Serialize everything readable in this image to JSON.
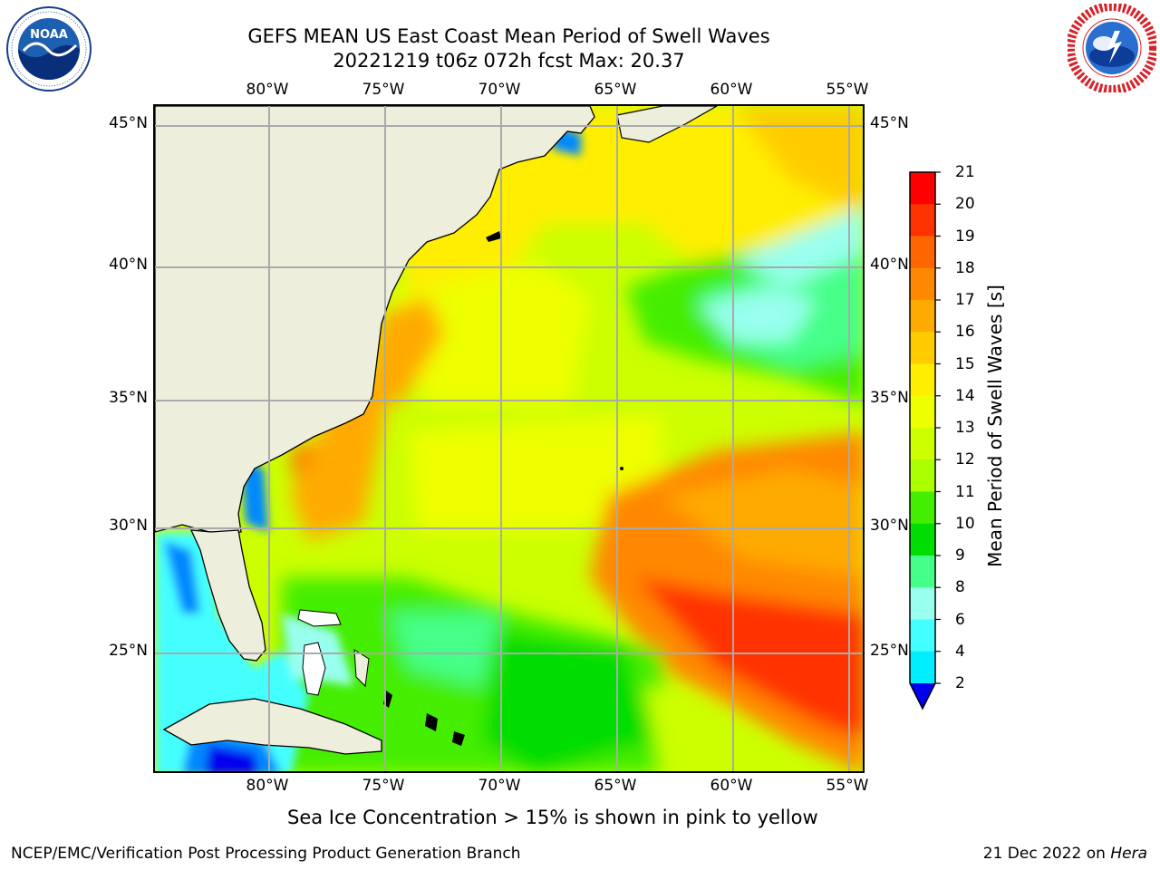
{
  "header": {
    "title_line1": "GEFS MEAN US East Coast Mean Period of Swell Waves",
    "title_line2": "20221219 t06z 072h fcst   Max: 20.37"
  },
  "logos": {
    "noaa_text": "NOAA",
    "noaa_ring_text": "NATIONAL OCEANIC AND ATMOSPHERIC ADMINISTRATION · U.S. DEPARTMENT OF COMMERCE",
    "nws_ring_text": "NATIONAL WEATHER SERVICE"
  },
  "map": {
    "lon_labels": [
      "80°W",
      "75°W",
      "70°W",
      "65°W",
      "60°W",
      "55°W"
    ],
    "lat_labels": [
      "45°N",
      "40°N",
      "35°N",
      "30°N",
      "25°N"
    ],
    "colors": {
      "land": "#eeeedd",
      "grid": "#aaaaaa",
      "coast": "#000000"
    }
  },
  "colorbar": {
    "label": "Mean Period of Swell Waves [s]",
    "ticks": [
      "21",
      "20",
      "19",
      "18",
      "17",
      "16",
      "15",
      "14",
      "13",
      "12",
      "11",
      "10",
      "9",
      "8",
      "6",
      "4",
      "2"
    ],
    "colors": [
      "#ff0000",
      "#ff3300",
      "#ff6600",
      "#ff8800",
      "#ffaa00",
      "#ffcc00",
      "#ffee00",
      "#eeff00",
      "#ccff00",
      "#aaff00",
      "#44ee00",
      "#00dd00",
      "#44ff88",
      "#99ffee",
      "#44ffff",
      "#00eeff",
      "#0088ff"
    ],
    "under_color": "#0000ee"
  },
  "notes": {
    "sea_ice": "Sea Ice Concentration > 15% is shown in pink to yellow",
    "credit": "NCEP/EMC/Verification Post Processing Product Generation Branch",
    "date": "21 Dec 2022 on ",
    "machine": "Hera"
  }
}
